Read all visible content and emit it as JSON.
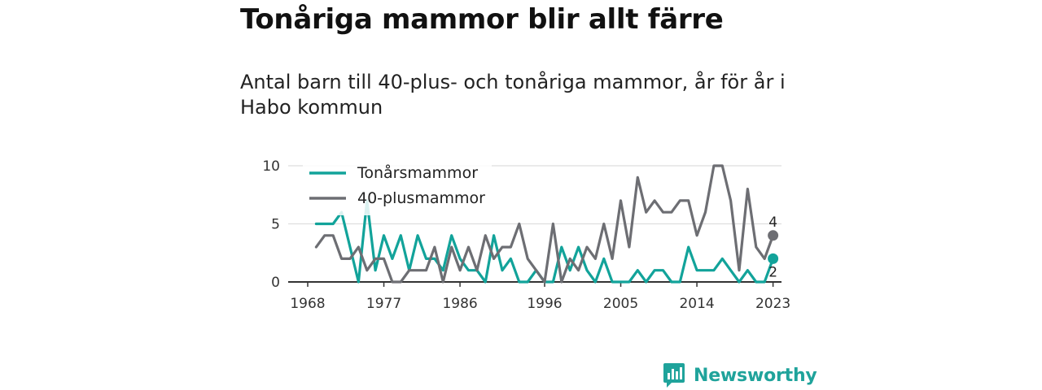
{
  "header": {
    "title": "Tonåriga mammor blir allt färre",
    "subtitle": "Antal barn till 40-plus- och tonåriga mammor, år för år i Habo kommun"
  },
  "brand": {
    "name": "Newsworthy",
    "icon": "bar-chart-logo-icon",
    "color": "#1fa39b"
  },
  "chart_data": {
    "type": "line",
    "title": "Tonåriga mammor blir allt färre",
    "subtitle": "Antal barn till 40-plus- och tonåriga mammor, år för år i Habo kommun",
    "xlabel": "",
    "ylabel": "",
    "x": [
      1969,
      1970,
      1971,
      1972,
      1973,
      1974,
      1975,
      1976,
      1977,
      1978,
      1979,
      1980,
      1981,
      1982,
      1983,
      1984,
      1985,
      1986,
      1987,
      1988,
      1989,
      1990,
      1991,
      1992,
      1993,
      1994,
      1995,
      1996,
      1997,
      1998,
      1999,
      2000,
      2001,
      2002,
      2003,
      2004,
      2005,
      2006,
      2007,
      2008,
      2009,
      2010,
      2011,
      2012,
      2013,
      2014,
      2015,
      2016,
      2017,
      2018,
      2019,
      2020,
      2021,
      2022,
      2023
    ],
    "xticks": [
      1968,
      1977,
      1986,
      1996,
      2005,
      2014,
      2023
    ],
    "xlim": [
      1968,
      2024
    ],
    "yticks": [
      0,
      5,
      10
    ],
    "ylim": [
      0,
      10
    ],
    "grid": "horizontal",
    "legend_position": "top-left",
    "series": [
      {
        "name": "Tonårsmammor",
        "color": "#12a39a",
        "values": [
          5,
          5,
          5,
          6,
          3,
          0,
          7,
          1,
          4,
          2,
          4,
          1,
          4,
          2,
          2,
          1,
          4,
          2,
          1,
          1,
          0,
          4,
          1,
          2,
          0,
          0,
          1,
          0,
          0,
          3,
          1,
          3,
          1,
          0,
          2,
          0,
          0,
          0,
          1,
          0,
          1,
          1,
          0,
          0,
          3,
          1,
          1,
          1,
          2,
          1,
          0,
          1,
          0,
          0,
          2
        ],
        "end_label": "2"
      },
      {
        "name": "40-plusmammor",
        "color": "#6d6e73",
        "values": [
          3,
          4,
          4,
          2,
          2,
          3,
          1,
          2,
          2,
          0,
          0,
          1,
          1,
          1,
          3,
          0,
          3,
          1,
          3,
          1,
          4,
          2,
          3,
          3,
          5,
          2,
          1,
          0,
          5,
          0,
          2,
          1,
          3,
          2,
          5,
          2,
          7,
          3,
          9,
          6,
          7,
          6,
          6,
          7,
          7,
          4,
          6,
          10,
          10,
          7,
          1,
          8,
          3,
          2,
          4
        ],
        "end_label": "4"
      }
    ]
  }
}
